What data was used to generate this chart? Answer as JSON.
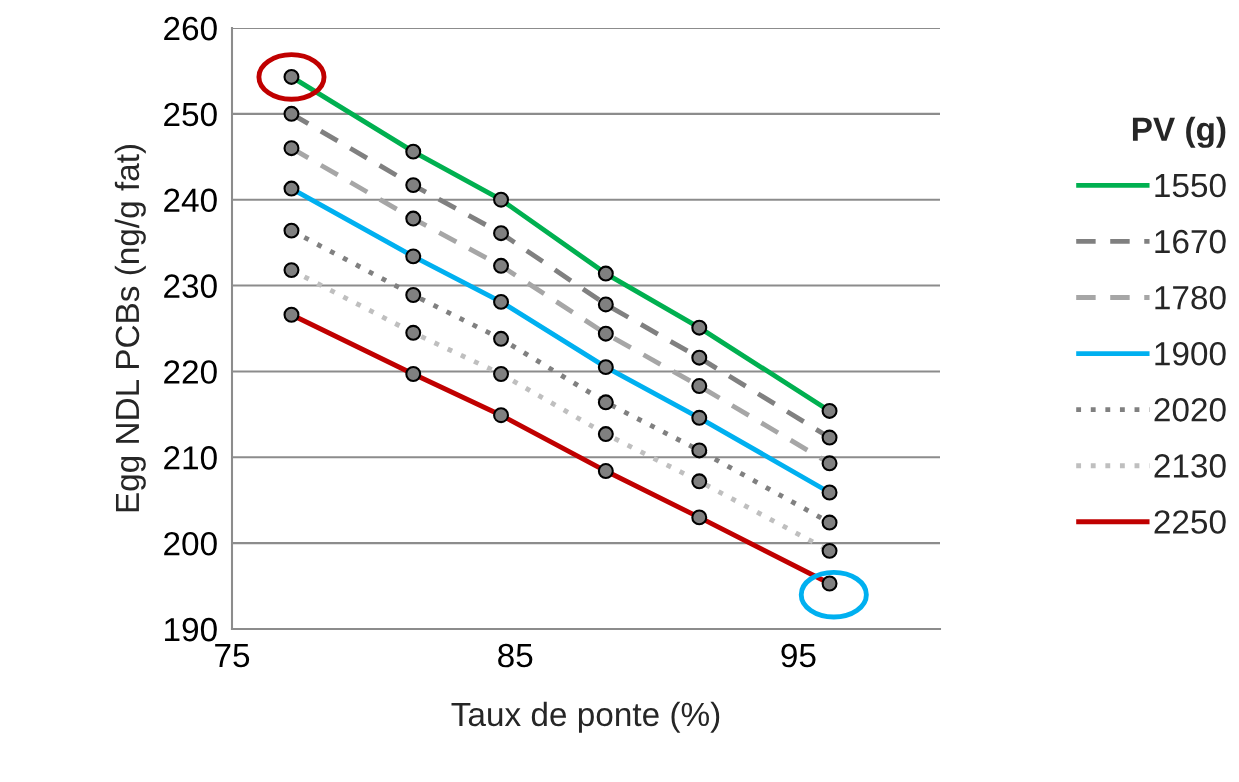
{
  "chart_data": {
    "type": "line",
    "xlabel": "Taux de ponte (%)",
    "ylabel": "Egg NDL PCBs (ng/g fat)",
    "legend_title": "PV (g)",
    "x": [
      77.1,
      81.4,
      84.5,
      88.2,
      91.5,
      96.1
    ],
    "xlim": [
      75,
      100
    ],
    "xticks": [
      75,
      85,
      95
    ],
    "ylim": [
      190,
      260
    ],
    "yticks": [
      190,
      200,
      210,
      220,
      230,
      240,
      250,
      260
    ],
    "grid": "y",
    "legend": "right",
    "marker": "circle",
    "series": [
      {
        "name": "1550",
        "color": "#00b050",
        "line_style": "solid",
        "values": [
          254.3,
          245.6,
          240.0,
          231.4,
          225.1,
          215.4
        ]
      },
      {
        "name": "1670",
        "color": "#808080",
        "line_style": "dashed",
        "values": [
          250.0,
          241.7,
          236.1,
          227.8,
          221.6,
          212.3
        ]
      },
      {
        "name": "1780",
        "color": "#a6a6a6",
        "line_style": "dashed",
        "values": [
          246.0,
          237.8,
          232.3,
          224.4,
          218.3,
          209.3
        ]
      },
      {
        "name": "1900",
        "color": "#00b0f0",
        "line_style": "solid",
        "values": [
          241.3,
          233.4,
          228.1,
          220.5,
          214.6,
          205.9
        ]
      },
      {
        "name": "2020",
        "color": "#808080",
        "line_style": "dotted",
        "values": [
          236.4,
          228.9,
          223.8,
          216.4,
          210.8,
          202.4
        ]
      },
      {
        "name": "2130",
        "color": "#bfbfbf",
        "line_style": "dotted",
        "values": [
          231.8,
          224.5,
          219.7,
          212.7,
          207.2,
          199.1
        ]
      },
      {
        "name": "2250",
        "color": "#c00000",
        "line_style": "solid",
        "values": [
          226.6,
          219.7,
          214.9,
          208.4,
          203.0,
          195.3
        ]
      }
    ]
  }
}
